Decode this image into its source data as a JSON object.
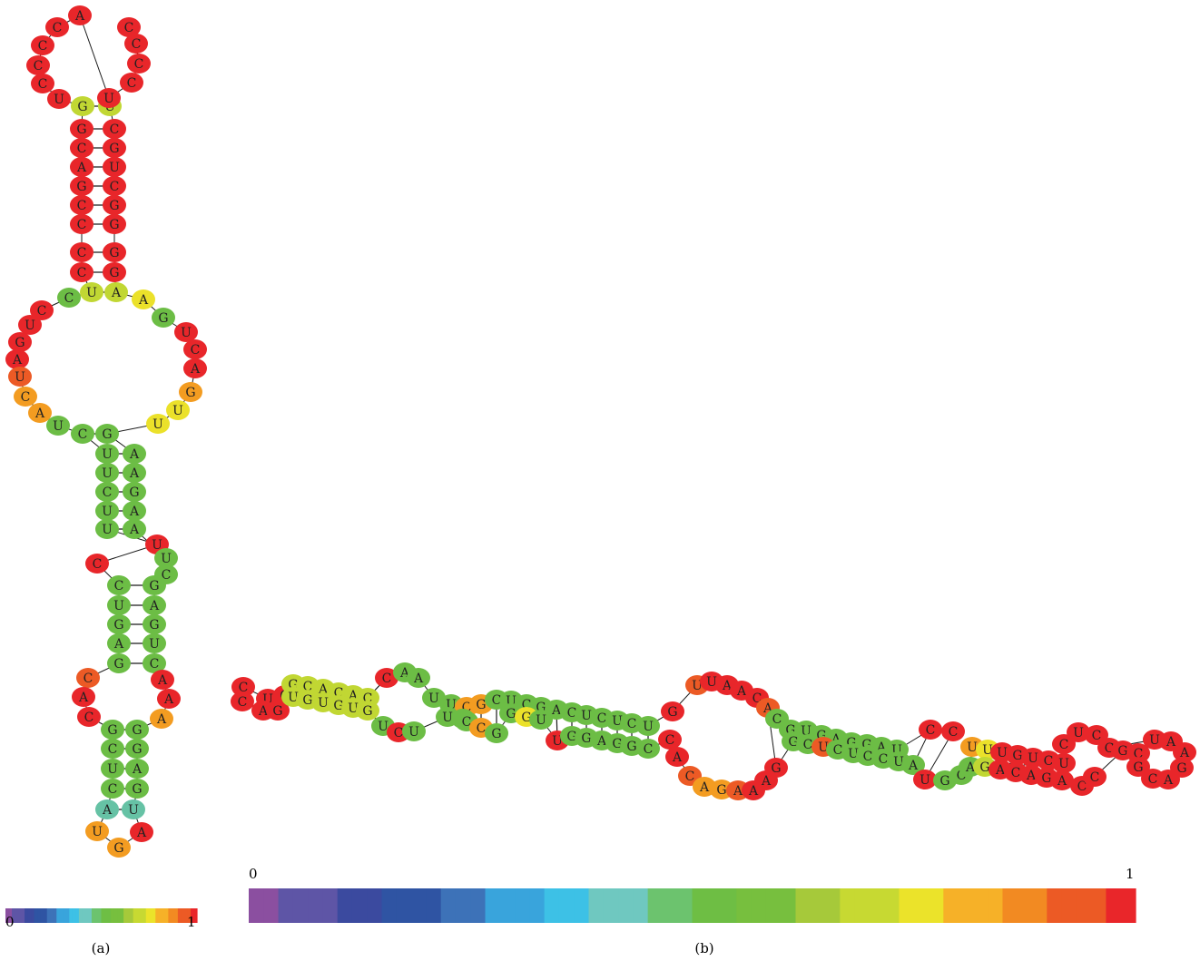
{
  "palette": [
    "#8b4fa0",
    "#5e55a6",
    "#3b4a9f",
    "#2f54a3",
    "#3d72b8",
    "#39a4dc",
    "#3dc1e6",
    "#6fc8c0",
    "#6cc36e",
    "#6ebe44",
    "#77bf3e",
    "#a6c93a",
    "#c7d932",
    "#ebe32a",
    "#f6b128",
    "#f28a22",
    "#ec5a25",
    "#e9262a"
  ],
  "panel_a": {
    "label": "(a)",
    "scale_min": "0",
    "scale_max": "1",
    "nucleotides": [
      {
        "b": "A",
        "c": "red"
      },
      {
        "b": "C",
        "c": "red"
      },
      {
        "b": "C",
        "c": "red"
      },
      {
        "b": "C",
        "c": "red"
      },
      {
        "b": "C",
        "c": "red"
      },
      {
        "b": "U",
        "c": "red"
      },
      {
        "b": "G",
        "c": "ylgreen"
      },
      {
        "b": "U",
        "c": "ylgreen"
      },
      {
        "b": "U",
        "c": "red"
      },
      {
        "b": "C",
        "c": "red"
      },
      {
        "b": "C",
        "c": "red"
      },
      {
        "b": "C",
        "c": "red"
      },
      {
        "b": "C",
        "c": "red"
      },
      {
        "b": "G",
        "c": "red"
      },
      {
        "b": "C",
        "c": "red"
      },
      {
        "b": "A",
        "c": "red"
      },
      {
        "b": "G",
        "c": "red"
      },
      {
        "b": "C",
        "c": "red"
      },
      {
        "b": "C",
        "c": "red"
      },
      {
        "b": "C",
        "c": "red"
      },
      {
        "b": "C",
        "c": "red"
      },
      {
        "b": "C",
        "c": "red"
      },
      {
        "b": "G",
        "c": "red"
      },
      {
        "b": "U",
        "c": "red"
      },
      {
        "b": "C",
        "c": "red"
      },
      {
        "b": "G",
        "c": "red"
      },
      {
        "b": "G",
        "c": "red"
      },
      {
        "b": "G",
        "c": "red"
      },
      {
        "b": "G",
        "c": "red"
      },
      {
        "b": "U",
        "c": "ylgreen"
      },
      {
        "b": "A",
        "c": "ylgreen"
      },
      {
        "b": "C",
        "c": "green"
      },
      {
        "b": "A",
        "c": "yellow"
      },
      {
        "b": "C",
        "c": "red"
      },
      {
        "b": "U",
        "c": "red"
      },
      {
        "b": "G",
        "c": "red"
      },
      {
        "b": "A",
        "c": "red"
      },
      {
        "b": "U",
        "c": "orange2"
      },
      {
        "b": "C",
        "c": "orange"
      },
      {
        "b": "A",
        "c": "orange"
      },
      {
        "b": "U",
        "c": "green"
      },
      {
        "b": "G",
        "c": "green"
      },
      {
        "b": "U",
        "c": "red"
      },
      {
        "b": "C",
        "c": "red"
      },
      {
        "b": "A",
        "c": "red"
      },
      {
        "b": "G",
        "c": "orange"
      },
      {
        "b": "U",
        "c": "yellow"
      },
      {
        "b": "U",
        "c": "yellow"
      },
      {
        "b": "C",
        "c": "green"
      },
      {
        "b": "G",
        "c": "green"
      },
      {
        "b": "U",
        "c": "green"
      },
      {
        "b": "U",
        "c": "green"
      },
      {
        "b": "C",
        "c": "green"
      },
      {
        "b": "U",
        "c": "green"
      },
      {
        "b": "U",
        "c": "green"
      },
      {
        "b": "A",
        "c": "green"
      },
      {
        "b": "A",
        "c": "green"
      },
      {
        "b": "G",
        "c": "green"
      },
      {
        "b": "A",
        "c": "green"
      },
      {
        "b": "A",
        "c": "green"
      },
      {
        "b": "U",
        "c": "red"
      },
      {
        "b": "U",
        "c": "green"
      },
      {
        "b": "C",
        "c": "green"
      },
      {
        "b": "C",
        "c": "red"
      },
      {
        "b": "C",
        "c": "green"
      },
      {
        "b": "U",
        "c": "green"
      },
      {
        "b": "G",
        "c": "green"
      },
      {
        "b": "A",
        "c": "green"
      },
      {
        "b": "G",
        "c": "green"
      },
      {
        "b": "G",
        "c": "green"
      },
      {
        "b": "A",
        "c": "green"
      },
      {
        "b": "G",
        "c": "green"
      },
      {
        "b": "U",
        "c": "green"
      },
      {
        "b": "C",
        "c": "green"
      },
      {
        "b": "C",
        "c": "orange2"
      },
      {
        "b": "A",
        "c": "red"
      },
      {
        "b": "C",
        "c": "red"
      },
      {
        "b": "A",
        "c": "red"
      },
      {
        "b": "A",
        "c": "red"
      },
      {
        "b": "A",
        "c": "orange"
      },
      {
        "b": "G",
        "c": "green"
      },
      {
        "b": "C",
        "c": "green"
      },
      {
        "b": "U",
        "c": "green"
      },
      {
        "b": "C",
        "c": "green"
      },
      {
        "b": "A",
        "c": "teal"
      },
      {
        "b": "G",
        "c": "green"
      },
      {
        "b": "G",
        "c": "green"
      },
      {
        "b": "A",
        "c": "green"
      },
      {
        "b": "G",
        "c": "green"
      },
      {
        "b": "U",
        "c": "teal"
      },
      {
        "b": "U",
        "c": "orange"
      },
      {
        "b": "G",
        "c": "orange"
      },
      {
        "b": "A",
        "c": "red"
      }
    ]
  },
  "panel_b": {
    "label": "(b)",
    "scale_min": "0",
    "scale_max": "1",
    "nucleotides": [
      {
        "b": "U",
        "c": "red"
      },
      {
        "b": "G",
        "c": "red"
      },
      {
        "b": "C",
        "c": "red"
      },
      {
        "b": "C",
        "c": "red"
      },
      {
        "b": "A",
        "c": "red"
      },
      {
        "b": "G",
        "c": "red"
      },
      {
        "b": "G",
        "c": "ylgreen"
      },
      {
        "b": "C",
        "c": "ylgreen"
      },
      {
        "b": "A",
        "c": "ylgreen"
      },
      {
        "b": "C",
        "c": "ylgreen"
      },
      {
        "b": "A",
        "c": "ylgreen"
      },
      {
        "b": "C",
        "c": "ylgreen"
      },
      {
        "b": "U",
        "c": "ylgreen"
      },
      {
        "b": "G",
        "c": "ylgreen"
      },
      {
        "b": "U",
        "c": "ylgreen"
      },
      {
        "b": "G",
        "c": "ylgreen"
      },
      {
        "b": "U",
        "c": "ylgreen"
      },
      {
        "b": "G",
        "c": "ylgreen"
      },
      {
        "b": "C",
        "c": "red"
      },
      {
        "b": "A",
        "c": "green"
      },
      {
        "b": "A",
        "c": "green"
      },
      {
        "b": "U",
        "c": "green"
      },
      {
        "b": "U",
        "c": "green"
      },
      {
        "b": "C",
        "c": "red"
      },
      {
        "b": "U",
        "c": "green"
      },
      {
        "b": "U",
        "c": "green"
      },
      {
        "b": "C",
        "c": "orange"
      },
      {
        "b": "G",
        "c": "orange"
      },
      {
        "b": "C",
        "c": "green"
      },
      {
        "b": "U",
        "c": "green"
      },
      {
        "b": "G",
        "c": "green"
      },
      {
        "b": "C",
        "c": "green"
      },
      {
        "b": "C",
        "c": "orange"
      },
      {
        "b": "G",
        "c": "green"
      },
      {
        "b": "U",
        "c": "green"
      },
      {
        "b": "C",
        "c": "green"
      },
      {
        "b": "G",
        "c": "green"
      },
      {
        "b": "A",
        "c": "green"
      },
      {
        "b": "C",
        "c": "green"
      },
      {
        "b": "U",
        "c": "green"
      },
      {
        "b": "C",
        "c": "green"
      },
      {
        "b": "U",
        "c": "green"
      },
      {
        "b": "C",
        "c": "green"
      },
      {
        "b": "U",
        "c": "green"
      },
      {
        "b": "G",
        "c": "green"
      },
      {
        "b": "G",
        "c": "yellow"
      },
      {
        "b": "U",
        "c": "green"
      },
      {
        "b": "U",
        "c": "red"
      },
      {
        "b": "G",
        "c": "green"
      },
      {
        "b": "G",
        "c": "green"
      },
      {
        "b": "A",
        "c": "green"
      },
      {
        "b": "G",
        "c": "green"
      },
      {
        "b": "G",
        "c": "green"
      },
      {
        "b": "C",
        "c": "green"
      },
      {
        "b": "G",
        "c": "red"
      },
      {
        "b": "C",
        "c": "red"
      },
      {
        "b": "U",
        "c": "orange2"
      },
      {
        "b": "U",
        "c": "red"
      },
      {
        "b": "A",
        "c": "red"
      },
      {
        "b": "A",
        "c": "red"
      },
      {
        "b": "C",
        "c": "red"
      },
      {
        "b": "A",
        "c": "orange2"
      },
      {
        "b": "A",
        "c": "red"
      },
      {
        "b": "C",
        "c": "orange2"
      },
      {
        "b": "A",
        "c": "orange"
      },
      {
        "b": "G",
        "c": "orange"
      },
      {
        "b": "A",
        "c": "orange2"
      },
      {
        "b": "A",
        "c": "red"
      },
      {
        "b": "A",
        "c": "red"
      },
      {
        "b": "G",
        "c": "red"
      },
      {
        "b": "C",
        "c": "green"
      },
      {
        "b": "G",
        "c": "green"
      },
      {
        "b": "U",
        "c": "green"
      },
      {
        "b": "G",
        "c": "green"
      },
      {
        "b": "A",
        "c": "green"
      },
      {
        "b": "G",
        "c": "green"
      },
      {
        "b": "G",
        "c": "green"
      },
      {
        "b": "A",
        "c": "green"
      },
      {
        "b": "U",
        "c": "green"
      },
      {
        "b": "G",
        "c": "green"
      },
      {
        "b": "C",
        "c": "green"
      },
      {
        "b": "U",
        "c": "orange2"
      },
      {
        "b": "C",
        "c": "green"
      },
      {
        "b": "U",
        "c": "green"
      },
      {
        "b": "C",
        "c": "green"
      },
      {
        "b": "C",
        "c": "green"
      },
      {
        "b": "U",
        "c": "green"
      },
      {
        "b": "A",
        "c": "green"
      },
      {
        "b": "C",
        "c": "red"
      },
      {
        "b": "C",
        "c": "red"
      },
      {
        "b": "U",
        "c": "red"
      },
      {
        "b": "G",
        "c": "green"
      },
      {
        "b": "C",
        "c": "green"
      },
      {
        "b": "A",
        "c": "green"
      },
      {
        "b": "U",
        "c": "orange"
      },
      {
        "b": "U",
        "c": "yellow"
      },
      {
        "b": "U",
        "c": "red"
      },
      {
        "b": "G",
        "c": "red"
      },
      {
        "b": "U",
        "c": "red"
      },
      {
        "b": "C",
        "c": "red"
      },
      {
        "b": "U",
        "c": "red"
      },
      {
        "b": "G",
        "c": "ylgreen"
      },
      {
        "b": "A",
        "c": "red"
      },
      {
        "b": "C",
        "c": "red"
      },
      {
        "b": "A",
        "c": "red"
      },
      {
        "b": "G",
        "c": "red"
      },
      {
        "b": "A",
        "c": "red"
      },
      {
        "b": "C",
        "c": "red"
      },
      {
        "b": "U",
        "c": "red"
      },
      {
        "b": "C",
        "c": "red"
      },
      {
        "b": "C",
        "c": "red"
      },
      {
        "b": "G",
        "c": "red"
      },
      {
        "b": "C",
        "c": "red"
      },
      {
        "b": "C",
        "c": "red"
      },
      {
        "b": "C",
        "c": "red"
      },
      {
        "b": "U",
        "c": "red"
      },
      {
        "b": "A",
        "c": "red"
      },
      {
        "b": "A",
        "c": "red"
      },
      {
        "b": "G",
        "c": "red"
      },
      {
        "b": "A",
        "c": "red"
      },
      {
        "b": "C",
        "c": "red"
      },
      {
        "b": "G",
        "c": "red"
      }
    ]
  },
  "colors": {
    "red": "#e8262a",
    "orange2": "#ec5a25",
    "orange": "#f39c21",
    "yellow": "#ebe12a",
    "ylgreen": "#c1d733",
    "green": "#6cbd45",
    "teal": "#66c2a5"
  }
}
